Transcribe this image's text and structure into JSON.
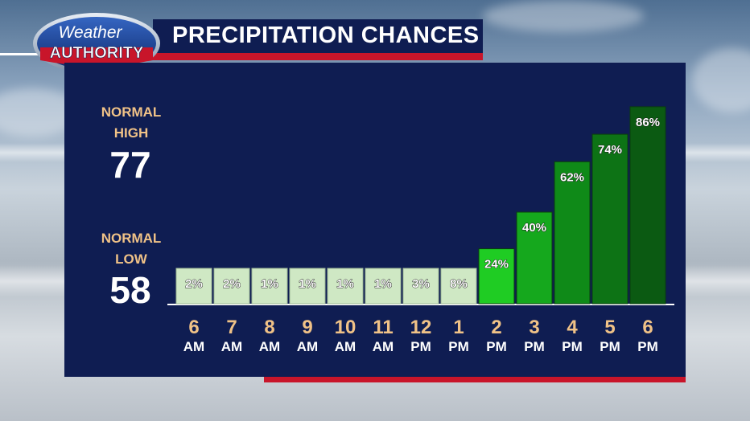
{
  "header": {
    "logo_line1": "Weather",
    "logo_line2": "AUTHORITY",
    "title": "PRECIPITATION CHANCES"
  },
  "normals": {
    "high_label_1": "NORMAL",
    "high_label_2": "HIGH",
    "high_value": "77",
    "low_label_1": "NORMAL",
    "low_label_2": "LOW",
    "low_value": "58"
  },
  "colors": {
    "panel": "#0f1d52",
    "accent_red": "#c8152a",
    "label_orange": "#f0c287",
    "bar_light": "#cfe8c4",
    "bar_bright": "#1fcc23",
    "bar_dark": "#0b5a12"
  },
  "chart_data": {
    "type": "bar",
    "title": "PRECIPITATION CHANCES",
    "categories": [
      "6 AM",
      "7 AM",
      "8 AM",
      "9 AM",
      "10 AM",
      "11 AM",
      "12 PM",
      "1 PM",
      "2 PM",
      "3 PM",
      "4 PM",
      "5 PM",
      "6 PM"
    ],
    "category_hours": [
      "6",
      "7",
      "8",
      "9",
      "10",
      "11",
      "12",
      "1",
      "2",
      "3",
      "4",
      "5",
      "6"
    ],
    "category_periods": [
      "AM",
      "AM",
      "AM",
      "AM",
      "AM",
      "AM",
      "PM",
      "PM",
      "PM",
      "PM",
      "PM",
      "PM",
      "PM"
    ],
    "values": [
      2,
      2,
      1,
      1,
      1,
      1,
      3,
      8,
      24,
      40,
      62,
      74,
      86
    ],
    "labels": [
      "2%",
      "2%",
      "1%",
      "1%",
      "1%",
      "1%",
      "3%",
      "8%",
      "24%",
      "40%",
      "62%",
      "74%",
      "86%"
    ],
    "bar_colors": [
      "#cfe8c4",
      "#cfe8c4",
      "#cfe8c4",
      "#cfe8c4",
      "#cfe8c4",
      "#cfe8c4",
      "#cfe8c4",
      "#cfe8c4",
      "#1fcc23",
      "#15a81d",
      "#0f8a18",
      "#0d7315",
      "#0b5a12"
    ],
    "xlabel": "",
    "ylabel": "",
    "ylim": [
      0,
      100
    ],
    "grid": false,
    "legend": "none"
  }
}
